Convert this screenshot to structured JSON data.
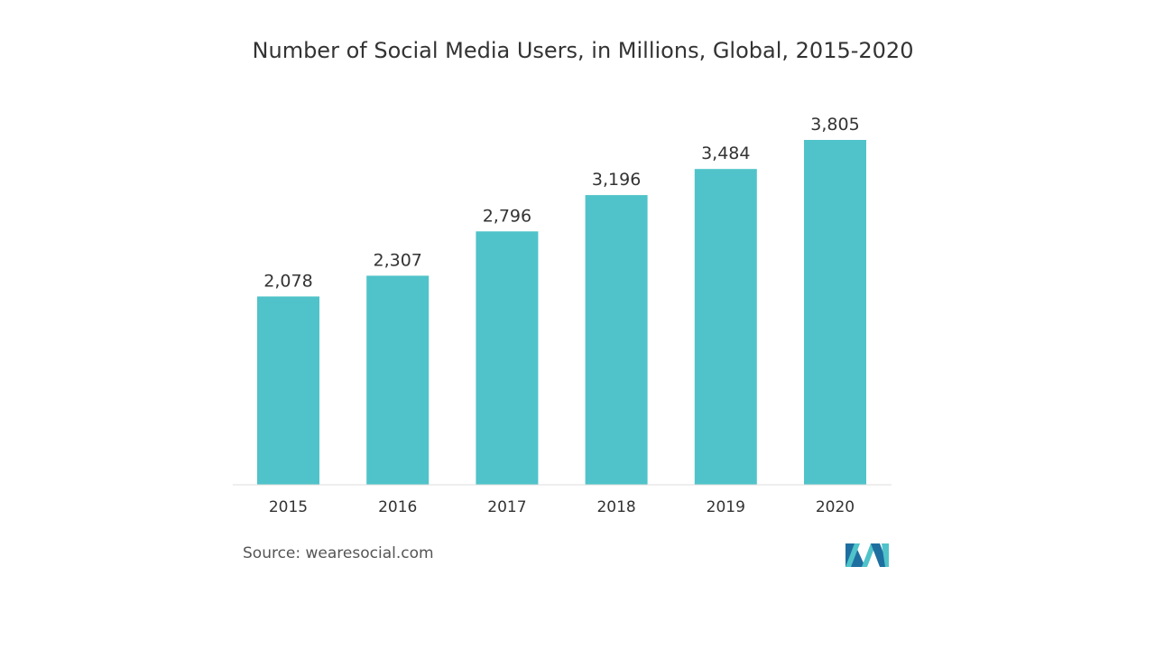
{
  "chart_data": {
    "type": "bar",
    "title": "Number of Social Media Users, in Millions, Global, 2015-2020",
    "categories": [
      "2015",
      "2016",
      "2017",
      "2018",
      "2019",
      "2020"
    ],
    "values": [
      2078,
      2307,
      2796,
      3196,
      3484,
      3805
    ],
    "value_labels": [
      "2,078",
      "2,307",
      "2,796",
      "3,196",
      "3,484",
      "3,805"
    ],
    "xlabel": "",
    "ylabel": "",
    "ylim": [
      0,
      3805
    ],
    "grid": false,
    "legend": "none"
  },
  "source": "Source: wearesocial.com",
  "colors": {
    "bar": "#4fc3c9",
    "axis": "#dddddd",
    "text": "#333333",
    "logo_dark": "#1e6fa0",
    "logo_light": "#4fc3c9"
  }
}
